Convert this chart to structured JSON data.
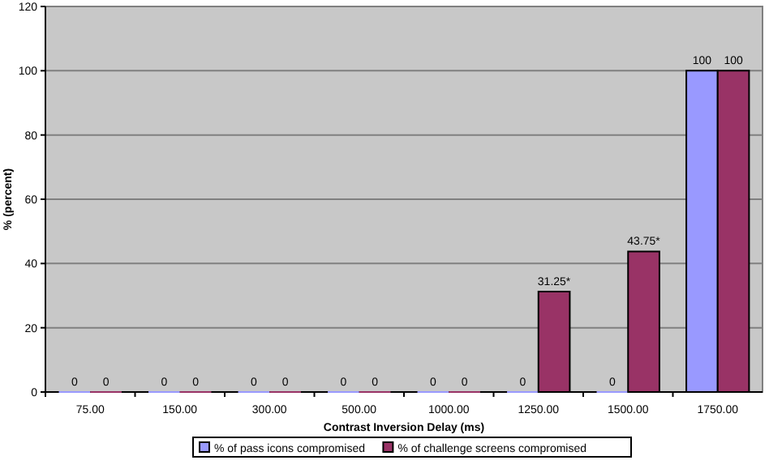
{
  "chart_data": {
    "type": "bar",
    "xlabel": "Contrast Inversion Delay (ms)",
    "ylabel": "% (percent)",
    "categories": [
      "75.00",
      "150.00",
      "300.00",
      "500.00",
      "1000.00",
      "1250.00",
      "1500.00",
      "1750.00"
    ],
    "series": [
      {
        "name": "% of pass icons compromised",
        "color": "#9999ff",
        "values": [
          0,
          0,
          0,
          0,
          0,
          0,
          0,
          100
        ],
        "value_labels": [
          "0",
          "0",
          "0",
          "0",
          "0",
          "0",
          "0",
          "100"
        ]
      },
      {
        "name": "% of challenge screens compromised",
        "color": "#993366",
        "values": [
          0,
          0,
          0,
          0,
          0,
          31.25,
          43.75,
          100
        ],
        "value_labels": [
          "0",
          "0",
          "0",
          "0",
          "0",
          "31.25*",
          "43.75*",
          "100"
        ]
      }
    ],
    "ylim": [
      0,
      120
    ],
    "yticks": [
      0,
      20,
      40,
      60,
      80,
      100,
      120
    ],
    "grid": "y",
    "legend": "bottom"
  }
}
